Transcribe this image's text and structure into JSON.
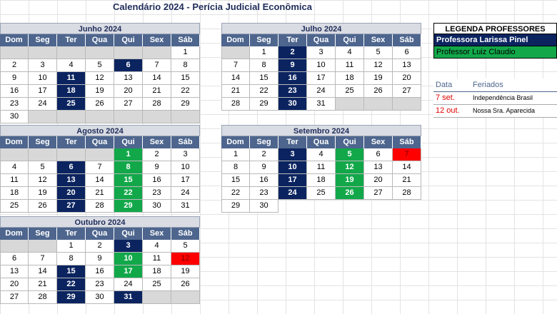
{
  "title": "Calendário 2024 - Perícia Judicial Econômica",
  "weekdays": [
    "Dom",
    "Seg",
    "Ter",
    "Qua",
    "Qui",
    "Sex",
    "Sáb"
  ],
  "calendars": [
    {
      "name": "Junho 2024",
      "weeks": [
        [
          [
            "",
            ""
          ],
          [
            "",
            ""
          ],
          [
            "",
            ""
          ],
          [
            "",
            ""
          ],
          [
            "",
            ""
          ],
          [
            "",
            ""
          ],
          [
            "1",
            ""
          ]
        ],
        [
          [
            "2",
            ""
          ],
          [
            "3",
            ""
          ],
          [
            "4",
            ""
          ],
          [
            "5",
            ""
          ],
          [
            "6",
            "blue"
          ],
          [
            "7",
            ""
          ],
          [
            "8",
            ""
          ]
        ],
        [
          [
            "9",
            ""
          ],
          [
            "10",
            ""
          ],
          [
            "11",
            "blue"
          ],
          [
            "12",
            ""
          ],
          [
            "13",
            ""
          ],
          [
            "14",
            ""
          ],
          [
            "15",
            ""
          ]
        ],
        [
          [
            "16",
            ""
          ],
          [
            "17",
            ""
          ],
          [
            "18",
            "blue"
          ],
          [
            "19",
            ""
          ],
          [
            "20",
            ""
          ],
          [
            "21",
            ""
          ],
          [
            "22",
            ""
          ]
        ],
        [
          [
            "23",
            ""
          ],
          [
            "24",
            ""
          ],
          [
            "25",
            "blue"
          ],
          [
            "26",
            ""
          ],
          [
            "27",
            ""
          ],
          [
            "28",
            ""
          ],
          [
            "29",
            ""
          ]
        ],
        [
          [
            "30",
            ""
          ],
          [
            "",
            ""
          ],
          [
            "",
            ""
          ],
          [
            "",
            ""
          ],
          [
            "",
            ""
          ],
          [
            "",
            ""
          ],
          [
            "",
            ""
          ]
        ]
      ]
    },
    {
      "name": "Julho 2024",
      "weeks": [
        [
          [
            "",
            ""
          ],
          [
            "1",
            ""
          ],
          [
            "2",
            "blue"
          ],
          [
            "3",
            ""
          ],
          [
            "4",
            ""
          ],
          [
            "5",
            ""
          ],
          [
            "6",
            ""
          ]
        ],
        [
          [
            "7",
            ""
          ],
          [
            "8",
            ""
          ],
          [
            "9",
            "blue"
          ],
          [
            "10",
            ""
          ],
          [
            "11",
            ""
          ],
          [
            "12",
            ""
          ],
          [
            "13",
            ""
          ]
        ],
        [
          [
            "14",
            ""
          ],
          [
            "15",
            ""
          ],
          [
            "16",
            "blue"
          ],
          [
            "17",
            ""
          ],
          [
            "18",
            ""
          ],
          [
            "19",
            ""
          ],
          [
            "20",
            ""
          ]
        ],
        [
          [
            "21",
            ""
          ],
          [
            "22",
            ""
          ],
          [
            "23",
            "blue"
          ],
          [
            "24",
            ""
          ],
          [
            "25",
            ""
          ],
          [
            "26",
            ""
          ],
          [
            "27",
            ""
          ]
        ],
        [
          [
            "28",
            ""
          ],
          [
            "29",
            ""
          ],
          [
            "30",
            "blue"
          ],
          [
            "31",
            ""
          ],
          [
            "",
            ""
          ],
          [
            "",
            ""
          ],
          [
            "",
            ""
          ]
        ]
      ]
    },
    {
      "name": "Agosto 2024",
      "weeks": [
        [
          [
            "",
            ""
          ],
          [
            "",
            ""
          ],
          [
            "",
            ""
          ],
          [
            "",
            ""
          ],
          [
            "1",
            "green"
          ],
          [
            "2",
            ""
          ],
          [
            "3",
            ""
          ]
        ],
        [
          [
            "4",
            ""
          ],
          [
            "5",
            ""
          ],
          [
            "6",
            "blue"
          ],
          [
            "7",
            ""
          ],
          [
            "8",
            "green"
          ],
          [
            "9",
            ""
          ],
          [
            "10",
            ""
          ]
        ],
        [
          [
            "11",
            ""
          ],
          [
            "12",
            ""
          ],
          [
            "13",
            "blue"
          ],
          [
            "14",
            ""
          ],
          [
            "15",
            "green"
          ],
          [
            "16",
            ""
          ],
          [
            "17",
            ""
          ]
        ],
        [
          [
            "18",
            ""
          ],
          [
            "19",
            ""
          ],
          [
            "20",
            "blue"
          ],
          [
            "21",
            ""
          ],
          [
            "22",
            "green"
          ],
          [
            "23",
            ""
          ],
          [
            "24",
            ""
          ]
        ],
        [
          [
            "25",
            ""
          ],
          [
            "26",
            ""
          ],
          [
            "27",
            "blue"
          ],
          [
            "28",
            ""
          ],
          [
            "29",
            "green"
          ],
          [
            "30",
            ""
          ],
          [
            "31",
            ""
          ]
        ]
      ]
    },
    {
      "name": "Setembro 2024",
      "weeks": [
        [
          [
            "1",
            ""
          ],
          [
            "2",
            ""
          ],
          [
            "3",
            "blue"
          ],
          [
            "4",
            ""
          ],
          [
            "5",
            "green"
          ],
          [
            "6",
            ""
          ],
          [
            "7",
            "red"
          ]
        ],
        [
          [
            "8",
            ""
          ],
          [
            "9",
            ""
          ],
          [
            "10",
            "blue"
          ],
          [
            "11",
            ""
          ],
          [
            "12",
            "green"
          ],
          [
            "13",
            ""
          ],
          [
            "14",
            ""
          ]
        ],
        [
          [
            "15",
            ""
          ],
          [
            "16",
            ""
          ],
          [
            "17",
            "blue"
          ],
          [
            "18",
            ""
          ],
          [
            "19",
            "green"
          ],
          [
            "20",
            ""
          ],
          [
            "21",
            ""
          ]
        ],
        [
          [
            "22",
            ""
          ],
          [
            "23",
            ""
          ],
          [
            "24",
            "blue"
          ],
          [
            "25",
            ""
          ],
          [
            "26",
            "green"
          ],
          [
            "27",
            ""
          ],
          [
            "28",
            ""
          ]
        ],
        [
          [
            "29",
            ""
          ],
          [
            "30",
            ""
          ]
        ]
      ]
    },
    {
      "name": "Outubro 2024",
      "weeks": [
        [
          [
            "",
            ""
          ],
          [
            "",
            ""
          ],
          [
            "1",
            ""
          ],
          [
            "2",
            ""
          ],
          [
            "3",
            "blue"
          ],
          [
            "4",
            ""
          ],
          [
            "5",
            ""
          ]
        ],
        [
          [
            "6",
            ""
          ],
          [
            "7",
            ""
          ],
          [
            "8",
            ""
          ],
          [
            "9",
            ""
          ],
          [
            "10",
            "green"
          ],
          [
            "11",
            ""
          ],
          [
            "12",
            "red"
          ]
        ],
        [
          [
            "13",
            ""
          ],
          [
            "14",
            ""
          ],
          [
            "15",
            "blue"
          ],
          [
            "16",
            ""
          ],
          [
            "17",
            "green"
          ],
          [
            "18",
            ""
          ],
          [
            "19",
            ""
          ]
        ],
        [
          [
            "20",
            ""
          ],
          [
            "21",
            ""
          ],
          [
            "22",
            "blue"
          ],
          [
            "23",
            ""
          ],
          [
            "24",
            ""
          ],
          [
            "25",
            ""
          ],
          [
            "26",
            ""
          ]
        ],
        [
          [
            "27",
            ""
          ],
          [
            "28",
            ""
          ],
          [
            "29",
            "blue"
          ],
          [
            "30",
            ""
          ],
          [
            "31",
            "blue"
          ],
          [
            "",
            ""
          ],
          [
            "",
            ""
          ]
        ]
      ]
    }
  ],
  "legend": {
    "title": "LEGENDA PROFESSORES",
    "prof1": "Professora Larissa Pinel",
    "prof2": "Professor Luiz Claudio"
  },
  "holidays": {
    "col_data": "Data",
    "col_feriados": "Feriados",
    "rows": [
      {
        "date": "7 set.",
        "name": "Independência Brasil"
      },
      {
        "date": "12 out.",
        "name": "Nossa Sra. Aparecida"
      }
    ]
  },
  "colors": {
    "blue": "#0b2460",
    "green": "#12a84a",
    "red": "#ff0000",
    "header": "#4e668e"
  }
}
